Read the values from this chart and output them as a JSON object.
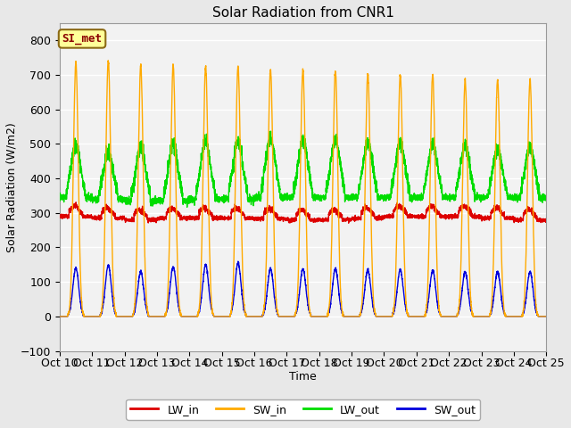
{
  "title": "Solar Radiation from CNR1",
  "xlabel": "Time",
  "ylabel": "Solar Radiation (W/m2)",
  "ylim": [
    -100,
    850
  ],
  "yticks": [
    -100,
    0,
    100,
    200,
    300,
    400,
    500,
    600,
    700,
    800
  ],
  "n_days": 15,
  "points_per_day": 288,
  "colors": {
    "LW_in": "#dd0000",
    "SW_in": "#ffaa00",
    "LW_out": "#00dd00",
    "SW_out": "#0000dd"
  },
  "linewidth": 1.0,
  "site_label": "SI_met",
  "site_label_color": "#8b0000",
  "site_label_bg": "#ffff99",
  "site_label_border": "#8b6914",
  "xtick_labels": [
    "Oct 10",
    "Oct 11",
    "Oct 12",
    "Oct 13",
    "Oct 14",
    "Oct 15",
    "Oct 16",
    "Oct 17",
    "Oct 18",
    "Oct 19",
    "Oct 20",
    "Oct 21",
    "Oct 22",
    "Oct 23",
    "Oct 24",
    "Oct 25"
  ],
  "bg_color": "#e8e8e8",
  "plot_bg_color": "#f2f2f2",
  "grid_color": "#ffffff",
  "grid_linewidth": 1.0
}
